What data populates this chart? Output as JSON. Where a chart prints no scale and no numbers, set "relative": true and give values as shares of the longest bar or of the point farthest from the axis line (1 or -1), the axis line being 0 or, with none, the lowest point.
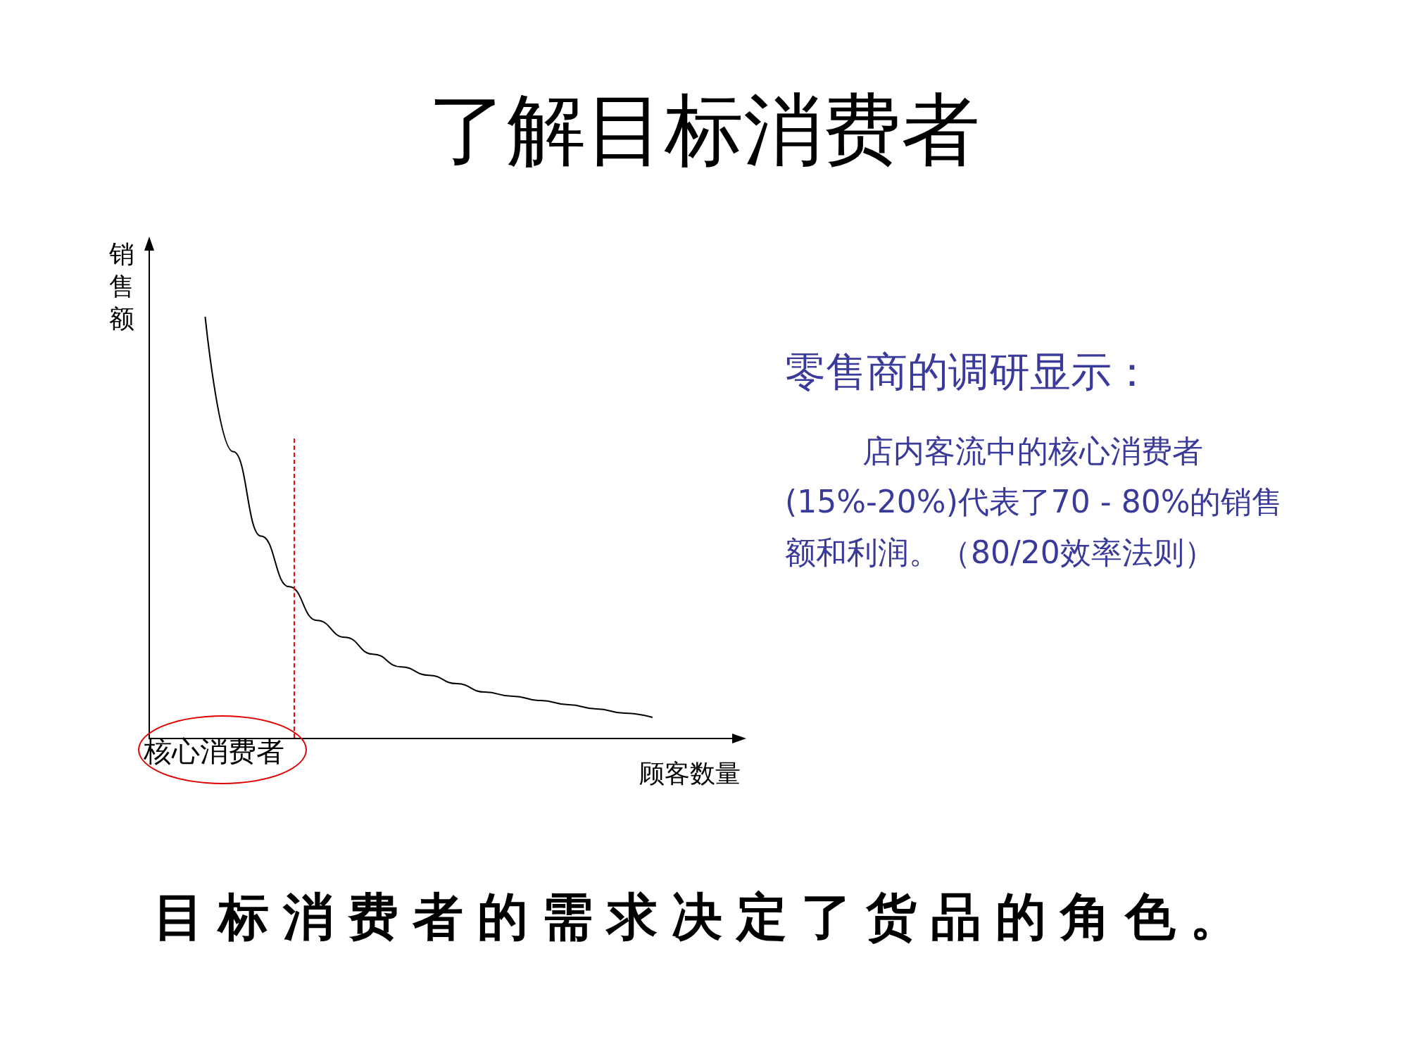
{
  "chart_data": {
    "type": "line",
    "title": "了解目标消费者",
    "xlabel": "顾客数量",
    "ylabel": "销售额",
    "relative": true,
    "categories": [
      null,
      null,
      null,
      null,
      null,
      null,
      null,
      null,
      null,
      null,
      null,
      null,
      null,
      null,
      null,
      null,
      null,
      null,
      null,
      null,
      null,
      null
    ],
    "series": [
      {
        "color": "#000000",
        "values": [
          null,
          null,
          1,
          0.68,
          0.48,
          0.36,
          0.28,
          0.24,
          0.2,
          0.17,
          0.15,
          0.13,
          0.11,
          0.1,
          0.09,
          0.08,
          0.07,
          0.06,
          0.05,
          null,
          null,
          null
        ]
      }
    ],
    "marker": "none",
    "line_style": "solid",
    "grid": false,
    "annotations": [
      "核心消费者",
      "零售商的调研显示：",
      "店内客流中的核心消费者(15%-20%)代表了70 - 80%的销售额和利润。（80/20效率法则）",
      "目标消费者的需求决定了货品的角色。"
    ]
  }
}
